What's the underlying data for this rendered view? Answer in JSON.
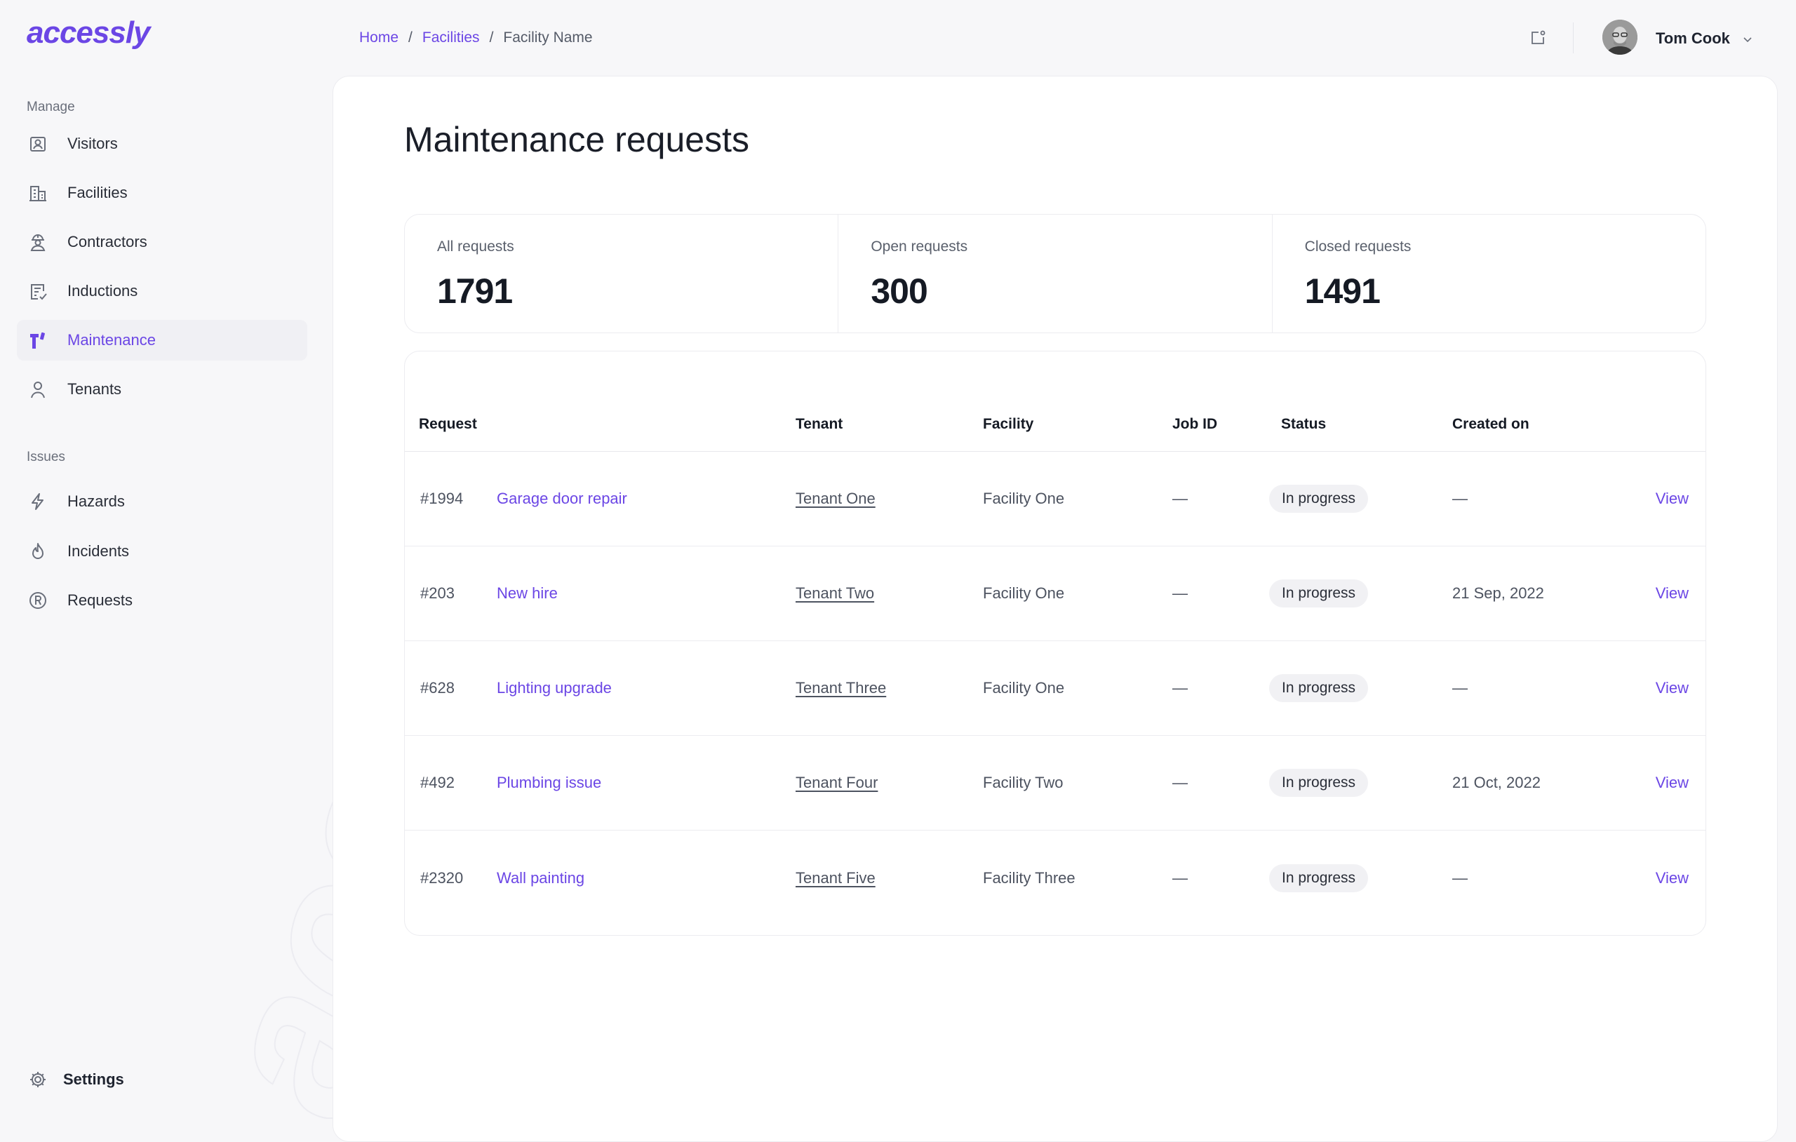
{
  "app": {
    "logo_text": "accessly",
    "brand_color": "#6b46e5"
  },
  "sidebar": {
    "sections": [
      {
        "label": "Manage"
      },
      {
        "label": "Issues"
      }
    ],
    "items": [
      {
        "label": "Visitors",
        "icon": "visitor-badge-icon"
      },
      {
        "label": "Facilities",
        "icon": "building-icon"
      },
      {
        "label": "Contractors",
        "icon": "hard-hat-worker-icon"
      },
      {
        "label": "Inductions",
        "icon": "checklist-document-icon"
      },
      {
        "label": "Maintenance",
        "icon": "maintenance-logo-icon",
        "active": true
      },
      {
        "label": "Tenants",
        "icon": "person-icon"
      },
      {
        "label": "Hazards",
        "icon": "lightning-icon"
      },
      {
        "label": "Incidents",
        "icon": "flame-icon"
      },
      {
        "label": "Requests",
        "icon": "registered-circle-icon"
      }
    ],
    "settings_label": "Settings"
  },
  "breadcrumb": {
    "home": "Home",
    "sep": "/",
    "facilities": "Facilities",
    "current": "Facility Name"
  },
  "user": {
    "name": "Tom Cook"
  },
  "page": {
    "title": "Maintenance requests"
  },
  "stats": [
    {
      "label": "All requests",
      "value": "1791"
    },
    {
      "label": "Open requests",
      "value": "300"
    },
    {
      "label": "Closed requests",
      "value": "1491"
    }
  ],
  "table": {
    "headers": {
      "request": "Request",
      "tenant": "Tenant",
      "facility": "Facility",
      "job_id": "Job ID",
      "status": "Status",
      "created_on": "Created on"
    },
    "rows": [
      {
        "id": "#1994",
        "title": "Garage door repair",
        "tenant": "Tenant One",
        "facility": "Facility One",
        "job_id": "—",
        "status": "In progress",
        "created_on": "—",
        "action": "View"
      },
      {
        "id": "#203",
        "title": "New hire",
        "tenant": "Tenant Two",
        "facility": "Facility One",
        "job_id": "—",
        "status": "In progress",
        "created_on": "21 Sep, 2022",
        "action": "View"
      },
      {
        "id": "#628",
        "title": "Lighting upgrade",
        "tenant": "Tenant Three",
        "facility": "Facility One",
        "job_id": "—",
        "status": "In progress",
        "created_on": "—",
        "action": "View"
      },
      {
        "id": "#492",
        "title": "Plumbing issue",
        "tenant": "Tenant Four",
        "facility": "Facility Two",
        "job_id": "—",
        "status": "In progress",
        "created_on": "21 Oct, 2022",
        "action": "View"
      },
      {
        "id": "#2320",
        "title": "Wall painting",
        "tenant": "Tenant Five",
        "facility": "Facility Three",
        "job_id": "—",
        "status": "In progress",
        "created_on": "—",
        "action": "View"
      }
    ]
  }
}
